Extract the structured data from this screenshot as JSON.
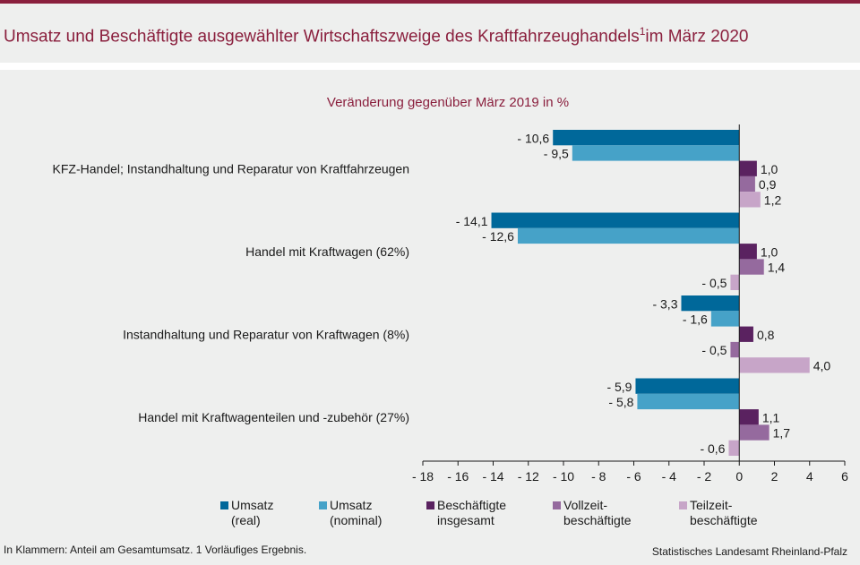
{
  "header": {
    "title": "Umsatz und Beschäftigte ausgewählter Wirtschaftszweige des Kraftfahrzeughandels",
    "title_sup": "1",
    "title_suffix": "im März 2020"
  },
  "chart_data": {
    "type": "bar",
    "orientation": "horizontal",
    "title": "Umsatz und Beschäftigte ausgewählter Wirtschaftszweige des Kraftfahrzeughandels im März 2020",
    "subtitle": "Veränderung gegenüber März 2019 in %",
    "categories": [
      "KFZ-Handel; Instandhaltung und Reparatur von Kraftfahrzeugen",
      "Handel mit Kraftwagen (62%)",
      "Instandhaltung und Reparatur von Kraftwagen (8%)",
      "Handel mit Kraftwagenteilen und -zubehör (27%)"
    ],
    "series": [
      {
        "name": "Umsatz (real)",
        "legend": "Umsatz\n(real)",
        "color": "#00689a",
        "values": [
          -10.6,
          -14.1,
          -3.3,
          -5.9
        ],
        "labels": [
          "- 10,6",
          "- 14,1",
          "- 3,3",
          "- 5,9"
        ]
      },
      {
        "name": "Umsatz (nominal)",
        "legend": "Umsatz\n(nominal)",
        "color": "#46a2c8",
        "values": [
          -9.5,
          -12.6,
          -1.6,
          -5.8
        ],
        "labels": [
          "- 9,5",
          "- 12,6",
          "- 1,6",
          "- 5,8"
        ]
      },
      {
        "name": "Beschäftigte insgesamt",
        "legend": "Beschäftigte\ninsgesamt",
        "color": "#5a2260",
        "values": [
          1.0,
          1.0,
          0.8,
          1.1
        ],
        "labels": [
          "1,0",
          "1,0",
          "0,8",
          "1,1"
        ]
      },
      {
        "name": "Vollzeitbeschäftigte",
        "legend": "Vollzeit-\nbeschäftigte",
        "color": "#956a9e",
        "values": [
          0.9,
          1.4,
          -0.5,
          1.7
        ],
        "labels": [
          "0,9",
          "1,4",
          "- 0,5",
          "1,7"
        ]
      },
      {
        "name": "Teilzeitbeschäftigte",
        "legend": "Teilzeit-\nbeschäftigte",
        "color": "#c7a5c8",
        "values": [
          1.2,
          -0.5,
          4.0,
          -0.6
        ],
        "labels": [
          "1,2",
          "- 0,5",
          "4,0",
          "- 0,6"
        ]
      }
    ],
    "xlim": [
      -18,
      6
    ],
    "xticks": [
      -18,
      -16,
      -14,
      -12,
      -10,
      -8,
      -6,
      -4,
      -2,
      0,
      2,
      4,
      6
    ],
    "xtick_labels": [
      "- 18",
      "- 16",
      "- 14",
      "- 12",
      "- 10",
      "- 8",
      "- 6",
      "- 4",
      "- 2",
      "0",
      "2",
      "4",
      "6"
    ],
    "grid": false,
    "legend_position": "bottom"
  },
  "footer": {
    "note": "In Klammern: Anteil am Gesamtumsatz. 1 Vorläufiges Ergebnis.",
    "source": "Statistisches Landesamt Rheinland-Pfalz"
  }
}
